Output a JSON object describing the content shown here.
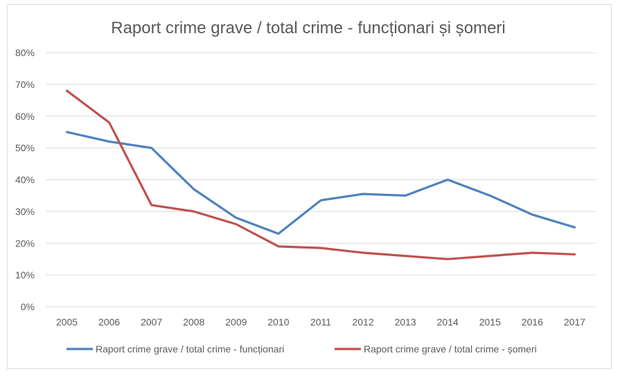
{
  "chart_data": {
    "type": "line",
    "title": "Raport crime grave / total crime - funcționari și șomeri",
    "xlabel": "",
    "ylabel": "",
    "x": [
      "2005",
      "2006",
      "2007",
      "2008",
      "2009",
      "2010",
      "2011",
      "2012",
      "2013",
      "2014",
      "2015",
      "2016",
      "2017"
    ],
    "ylim": [
      0,
      0.8
    ],
    "yticks": [
      0,
      0.1,
      0.2,
      0.3,
      0.4,
      0.5,
      0.6,
      0.7,
      0.8
    ],
    "ytick_labels": [
      "0%",
      "10%",
      "20%",
      "30%",
      "40%",
      "50%",
      "60%",
      "70%",
      "80%"
    ],
    "grid": true,
    "legend_position": "bottom",
    "series": [
      {
        "name": "Raport crime grave / total crime - funcționari",
        "color": "#4f81bd",
        "values": [
          0.55,
          0.52,
          0.5,
          0.37,
          0.28,
          0.23,
          0.335,
          0.355,
          0.35,
          0.4,
          0.35,
          0.29,
          0.25
        ]
      },
      {
        "name": "Raport crime grave / total crime - șomeri",
        "color": "#c0504d",
        "values": [
          0.68,
          0.58,
          0.32,
          0.3,
          0.26,
          0.19,
          0.185,
          0.17,
          0.16,
          0.15,
          0.16,
          0.17,
          0.165
        ]
      }
    ]
  }
}
